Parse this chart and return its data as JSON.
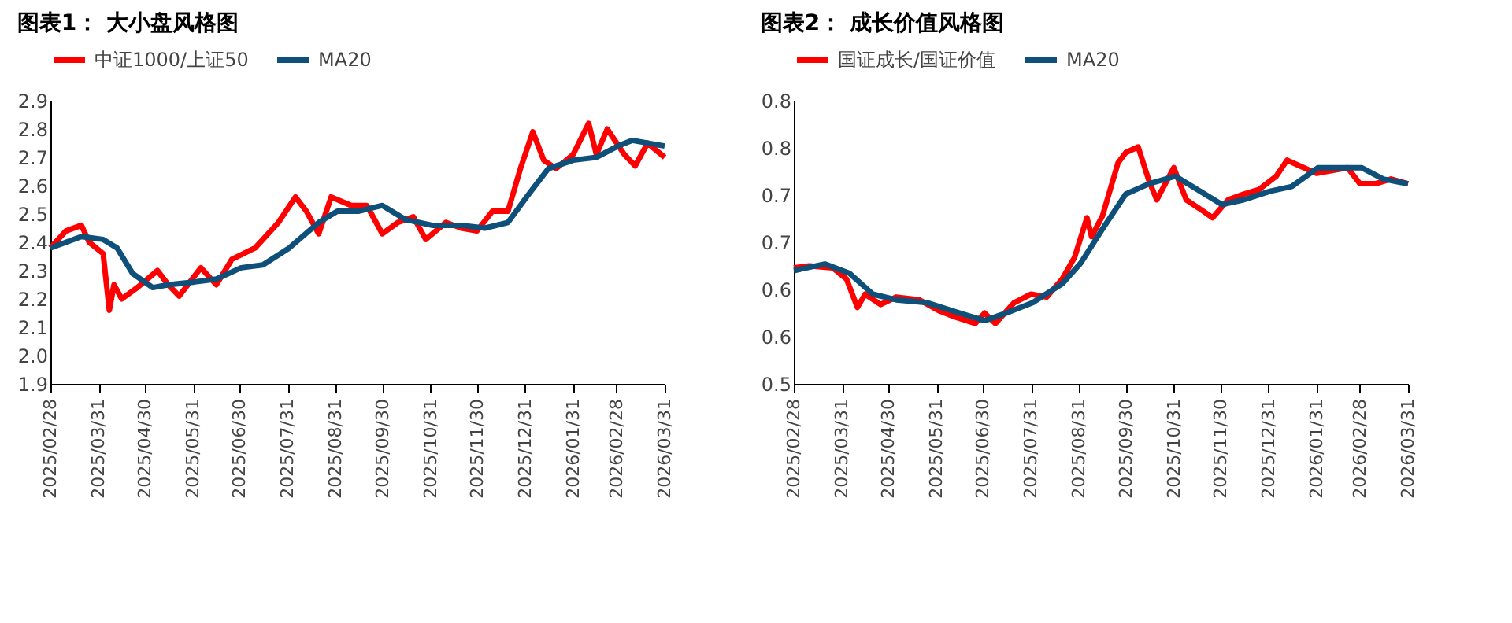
{
  "chart_data": [
    {
      "type": "line",
      "title": "图表1：  大小盘风格图",
      "legend": "top",
      "grid": false,
      "ylim": [
        1.9,
        2.9
      ],
      "yticks": [
        1.9,
        {
          "value": 2.0,
          "label": "2.0"
        },
        2.1,
        2.2,
        2.3,
        2.4,
        2.5,
        2.6,
        2.7,
        2.8,
        2.9
      ],
      "xlim": [
        "2025-02-28",
        "2026-03-31"
      ],
      "xticks": [
        {
          "value": "2025-02-28",
          "label": "2025/02/28"
        },
        {
          "value": "2025-03-31",
          "label": "2025/03/31"
        },
        {
          "value": "2025-04-30",
          "label": "2025/04/30"
        },
        {
          "value": "2025-05-31",
          "label": "2025/05/31"
        },
        {
          "value": "2025-06-30",
          "label": "2025/06/30"
        },
        {
          "value": "2025-07-31",
          "label": "2025/07/31"
        },
        {
          "value": "2025-08-31",
          "label": "2025/08/31"
        },
        {
          "value": "2025-09-30",
          "label": "2025/09/30"
        },
        {
          "value": "2025-10-31",
          "label": "2025/10/31"
        },
        {
          "value": "2025-11-30",
          "label": "2025/11/30"
        },
        {
          "value": "2025-12-31",
          "label": "2025/12/31"
        },
        {
          "value": "2026-01-31",
          "label": "2026/01/31"
        },
        {
          "value": "2026-02-28",
          "label": "2026/02/28"
        },
        {
          "value": "2026-03-31",
          "label": "2026/03/31"
        }
      ],
      "series": [
        {
          "name": "中证1000/上证50",
          "color": "#ff0000",
          "x": [
            "2025-02-28",
            "2025-03-10",
            "2025-03-20",
            "2025-03-25",
            "2025-04-03",
            "2025-04-07",
            "2025-04-10",
            "2025-04-15",
            "2025-04-25",
            "2025-05-08",
            "2025-05-15",
            "2025-05-22",
            "2025-06-05",
            "2025-06-15",
            "2025-06-25",
            "2025-07-10",
            "2025-07-25",
            "2025-08-05",
            "2025-08-12",
            "2025-08-20",
            "2025-08-28",
            "2025-09-10",
            "2025-09-20",
            "2025-09-30",
            "2025-10-10",
            "2025-10-20",
            "2025-10-28",
            "2025-11-10",
            "2025-11-20",
            "2025-11-30",
            "2025-12-10",
            "2025-12-20",
            "2025-12-28",
            "2026-01-05",
            "2026-01-12",
            "2026-01-20",
            "2026-01-31",
            "2026-02-10",
            "2026-02-15",
            "2026-02-22",
            "2026-03-05",
            "2026-03-12",
            "2026-03-20",
            "2026-03-31"
          ],
          "values": [
            2.38,
            2.44,
            2.46,
            2.4,
            2.36,
            2.16,
            2.25,
            2.2,
            2.24,
            2.3,
            2.25,
            2.21,
            2.31,
            2.25,
            2.34,
            2.38,
            2.47,
            2.56,
            2.51,
            2.43,
            2.56,
            2.53,
            2.53,
            2.43,
            2.47,
            2.49,
            2.41,
            2.47,
            2.45,
            2.44,
            2.51,
            2.51,
            2.66,
            2.79,
            2.69,
            2.66,
            2.71,
            2.82,
            2.71,
            2.8,
            2.71,
            2.67,
            2.75,
            2.7
          ]
        },
        {
          "name": "MA20",
          "color": "#0e5079",
          "x": [
            "2025-02-28",
            "2025-03-20",
            "2025-04-03",
            "2025-04-12",
            "2025-04-22",
            "2025-05-05",
            "2025-05-15",
            "2025-06-01",
            "2025-06-15",
            "2025-07-01",
            "2025-07-15",
            "2025-08-01",
            "2025-08-20",
            "2025-09-01",
            "2025-09-15",
            "2025-09-30",
            "2025-10-15",
            "2025-11-01",
            "2025-11-20",
            "2025-12-05",
            "2025-12-20",
            "2026-01-01",
            "2026-01-15",
            "2026-01-31",
            "2026-02-15",
            "2026-03-01",
            "2026-03-10",
            "2026-03-31"
          ],
          "values": [
            2.38,
            2.42,
            2.41,
            2.38,
            2.29,
            2.24,
            2.25,
            2.26,
            2.27,
            2.31,
            2.32,
            2.38,
            2.47,
            2.51,
            2.51,
            2.53,
            2.48,
            2.46,
            2.46,
            2.45,
            2.47,
            2.56,
            2.66,
            2.69,
            2.7,
            2.74,
            2.76,
            2.74
          ]
        }
      ]
    },
    {
      "type": "line",
      "title": "图表2：  成长价值风格图",
      "legend": "top",
      "grid": false,
      "ylim": [
        0.5,
        0.8
      ],
      "yticks": [
        0.5,
        {
          "value": 0.55,
          "label": "0.6"
        },
        0.6,
        {
          "value": 0.65,
          "label": "0.7"
        },
        0.7,
        {
          "value": 0.75,
          "label": "0.8"
        },
        0.8
      ],
      "xlim": [
        "2025-02-28",
        "2026-03-31"
      ],
      "xticks": [
        {
          "value": "2025-02-28",
          "label": "2025/02/28"
        },
        {
          "value": "2025-03-31",
          "label": "2025/03/31"
        },
        {
          "value": "2025-04-30",
          "label": "2025/04/30"
        },
        {
          "value": "2025-05-31",
          "label": "2025/05/31"
        },
        {
          "value": "2025-06-30",
          "label": "2025/06/30"
        },
        {
          "value": "2025-07-31",
          "label": "2025/07/31"
        },
        {
          "value": "2025-08-31",
          "label": "2025/08/31"
        },
        {
          "value": "2025-09-30",
          "label": "2025/09/30"
        },
        {
          "value": "2025-10-31",
          "label": "2025/10/31"
        },
        {
          "value": "2025-11-30",
          "label": "2025/11/30"
        },
        {
          "value": "2025-12-31",
          "label": "2025/12/31"
        },
        {
          "value": "2026-01-31",
          "label": "2026/01/31"
        },
        {
          "value": "2026-02-28",
          "label": "2026/02/28"
        },
        {
          "value": "2026-03-31",
          "label": "2026/03/31"
        }
      ],
      "series": [
        {
          "name": "国证成长/国证价值",
          "color": "#ff0000",
          "x": [
            "2025-02-28",
            "2025-03-10",
            "2025-03-25",
            "2025-04-03",
            "2025-04-10",
            "2025-04-15",
            "2025-04-25",
            "2025-05-05",
            "2025-05-20",
            "2025-06-01",
            "2025-06-10",
            "2025-06-25",
            "2025-07-01",
            "2025-07-08",
            "2025-07-20",
            "2025-07-31",
            "2025-08-10",
            "2025-08-20",
            "2025-08-28",
            "2025-09-05",
            "2025-09-08",
            "2025-09-15",
            "2025-09-25",
            "2025-09-30",
            "2025-10-08",
            "2025-10-15",
            "2025-10-20",
            "2025-10-31",
            "2025-11-08",
            "2025-11-18",
            "2025-11-25",
            "2025-12-05",
            "2025-12-15",
            "2025-12-25",
            "2026-01-05",
            "2026-01-12",
            "2026-01-20",
            "2026-01-31",
            "2026-02-10",
            "2026-02-20",
            "2026-02-28",
            "2026-03-10",
            "2026-03-20",
            "2026-03-31"
          ],
          "values": [
            0.623,
            0.625,
            0.623,
            0.611,
            0.581,
            0.595,
            0.584,
            0.592,
            0.589,
            0.578,
            0.572,
            0.564,
            0.575,
            0.564,
            0.586,
            0.595,
            0.592,
            0.611,
            0.634,
            0.676,
            0.656,
            0.678,
            0.734,
            0.745,
            0.751,
            0.715,
            0.695,
            0.729,
            0.695,
            0.684,
            0.676,
            0.695,
            0.701,
            0.706,
            0.72,
            0.737,
            0.731,
            0.723,
            0.726,
            0.729,
            0.712,
            0.712,
            0.717,
            0.712
          ]
        },
        {
          "name": "MA20",
          "color": "#0e5079",
          "x": [
            "2025-02-28",
            "2025-03-20",
            "2025-04-05",
            "2025-04-20",
            "2025-05-05",
            "2025-05-25",
            "2025-06-15",
            "2025-07-01",
            "2025-07-15",
            "2025-08-01",
            "2025-08-20",
            "2025-09-01",
            "2025-09-15",
            "2025-09-30",
            "2025-10-15",
            "2025-11-01",
            "2025-11-15",
            "2025-12-01",
            "2025-12-15",
            "2026-01-01",
            "2026-01-15",
            "2026-02-01",
            "2026-02-15",
            "2026-03-01",
            "2026-03-15",
            "2026-03-31"
          ],
          "values": [
            0.62,
            0.627,
            0.617,
            0.595,
            0.589,
            0.586,
            0.575,
            0.567,
            0.575,
            0.586,
            0.606,
            0.628,
            0.664,
            0.701,
            0.712,
            0.72,
            0.706,
            0.69,
            0.695,
            0.704,
            0.709,
            0.729,
            0.729,
            0.729,
            0.717,
            0.712
          ]
        }
      ]
    }
  ]
}
